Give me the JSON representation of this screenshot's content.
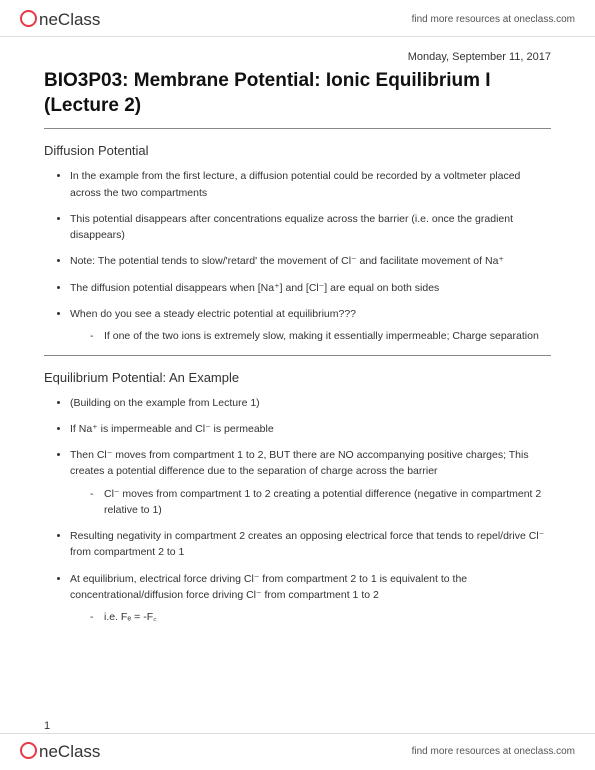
{
  "header": {
    "logo_prefix": "ne",
    "logo_suffix": "Class",
    "link_text": "find more resources at oneclass.com"
  },
  "doc": {
    "date": "Monday, September 11, 2017",
    "title": "BIO3P03: Membrane Potential: Ionic Equilibrium I (Lecture 2)",
    "page_number": "1"
  },
  "sections": [
    {
      "heading": "Diffusion Potential",
      "items": [
        {
          "text": "In the example from the first lecture, a diffusion potential could be recorded by a voltmeter placed across the two compartments"
        },
        {
          "text": "This potential disappears after concentrations equalize across the barrier (i.e. once the gradient disappears)"
        },
        {
          "text": "Note: The potential tends to slow/'retard' the movement of Cl⁻ and facilitate movement of Na⁺"
        },
        {
          "text": "The diffusion potential disappears when [Na⁺] and [Cl⁻] are equal on both sides"
        },
        {
          "text": "When do you see a steady electric potential at equilibrium???",
          "sub": [
            "If one of the two ions is extremely slow, making it essentially impermeable; Charge separation"
          ]
        }
      ]
    },
    {
      "heading": "Equilibrium Potential: An Example",
      "items": [
        {
          "text": "(Building on the example from Lecture 1)"
        },
        {
          "text": "If Na⁺ is impermeable and Cl⁻ is permeable"
        },
        {
          "text": "Then Cl⁻ moves from compartment 1 to 2, BUT there are NO accompanying positive charges; This creates a potential difference due to the separation of charge across the barrier",
          "sub": [
            "Cl⁻ moves from compartment 1 to 2 creating a potential difference (negative in compartment 2 relative to 1)"
          ]
        },
        {
          "text": "Resulting negativity in compartment 2 creates an opposing electrical force that tends to repel/drive Cl⁻ from compartment 2 to 1"
        },
        {
          "text": "At equilibrium, electrical force driving Cl⁻ from compartment 2 to 1 is equivalent to the concentrational/diffusion force driving Cl⁻ from compartment 1 to 2",
          "sub": [
            "i.e. Fₑ = -F꜀"
          ]
        }
      ]
    }
  ]
}
